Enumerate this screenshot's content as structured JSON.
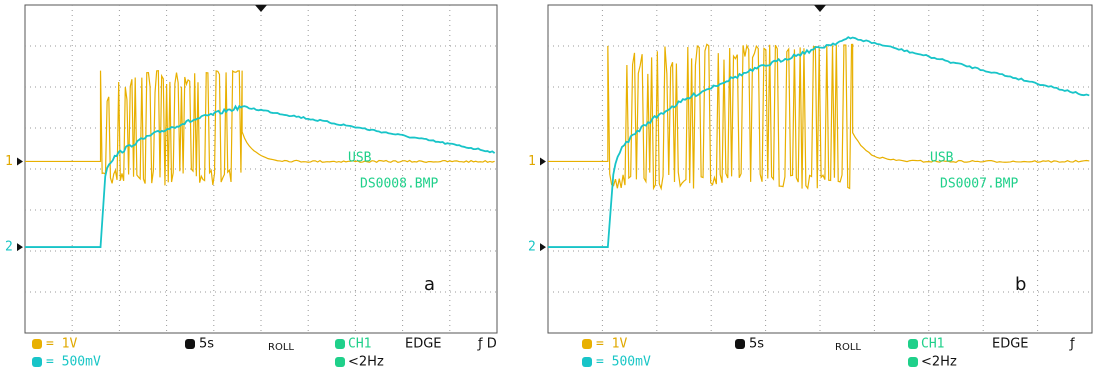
{
  "panels": [
    {
      "file": "DS0008.BMP",
      "usb": "USB",
      "label": "a",
      "ch1_marker": "1",
      "ch2_marker": "2",
      "status": {
        "ch1_scale": "= 1V",
        "ch2_scale": "= 500mV",
        "time": "5s",
        "mode": "ROLL",
        "trigger_source": "CH1",
        "trigger_type": "EDGE",
        "coupling": "<2Hz",
        "slope": "ƒ D"
      }
    },
    {
      "file": "DS0007.BMP",
      "usb": "USB",
      "label": "b",
      "ch1_marker": "1",
      "ch2_marker": "2",
      "status": {
        "ch1_scale": "= 1V",
        "ch2_scale": "= 500mV",
        "time": "5s",
        "mode": "ROLL",
        "trigger_source": "CH1",
        "trigger_type": "EDGE",
        "coupling": "<2Hz",
        "slope": "ƒ"
      }
    }
  ]
}
